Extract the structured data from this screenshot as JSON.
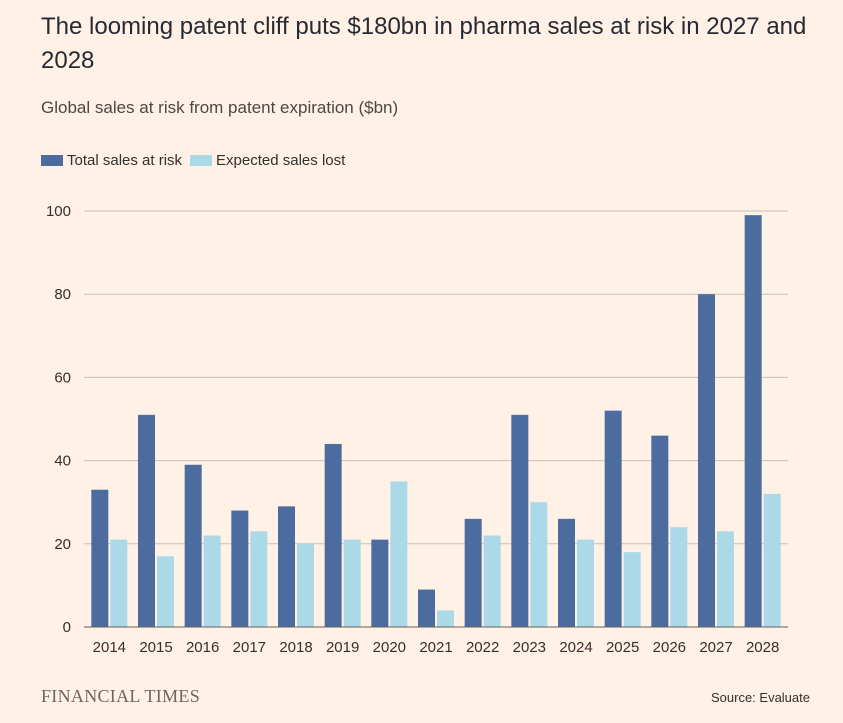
{
  "title": "The looming patent cliff puts $180bn in pharma sales at risk in 2027 and 2028",
  "subtitle": "Global sales at risk from patent expiration ($bn)",
  "footer": {
    "brand": "FINANCIAL TIMES",
    "source": "Source: Evaluate"
  },
  "colors": {
    "background": "#fff1e5",
    "total": "#4c6b9e",
    "expected": "#acd9e8",
    "grid": "#c9bfb7"
  },
  "chart_data": {
    "type": "bar",
    "title": "The looming patent cliff puts $180bn in pharma sales at risk in 2027 and 2028",
    "subtitle": "Global sales at risk from patent expiration ($bn)",
    "xlabel": "",
    "ylabel": "",
    "ylim": [
      0,
      100
    ],
    "yticks": [
      0,
      20,
      40,
      60,
      80,
      100
    ],
    "grid": true,
    "legend": "top-left",
    "categories": [
      "2014",
      "2015",
      "2016",
      "2017",
      "2018",
      "2019",
      "2020",
      "2021",
      "2022",
      "2023",
      "2024",
      "2025",
      "2026",
      "2027",
      "2028"
    ],
    "series": [
      {
        "name": "Total sales at risk",
        "color": "#4c6b9e",
        "values": [
          33,
          51,
          39,
          28,
          29,
          44,
          21,
          9,
          26,
          51,
          26,
          52,
          46,
          80,
          99
        ]
      },
      {
        "name": "Expected sales lost",
        "color": "#acd9e8",
        "values": [
          21,
          17,
          22,
          23,
          20,
          21,
          35,
          4,
          22,
          30,
          21,
          18,
          24,
          23,
          32
        ]
      }
    ]
  }
}
